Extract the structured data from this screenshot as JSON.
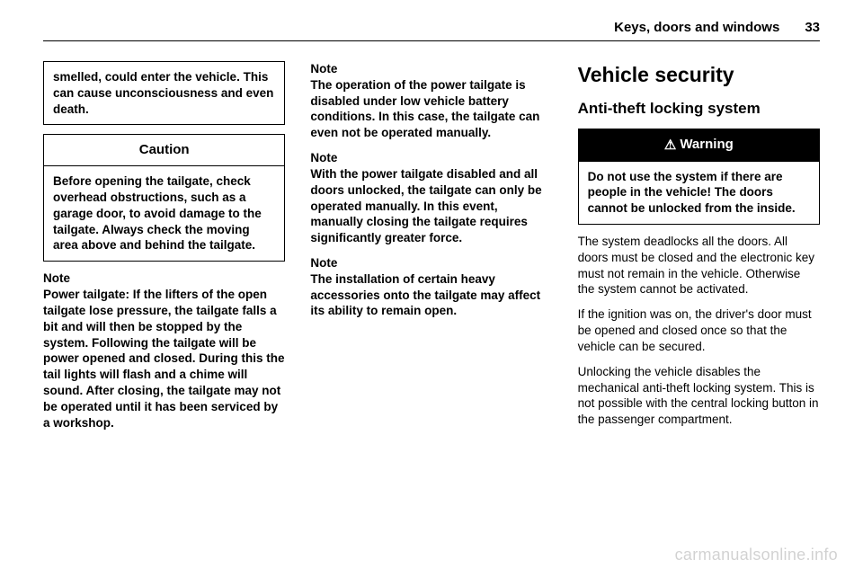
{
  "header": {
    "title": "Keys, doors and windows",
    "page": "33"
  },
  "col1": {
    "top_box": "smelled, could enter the vehicle. This can cause unconsciousness and even death.",
    "caution_label": "Caution",
    "caution_body": "Before opening the tailgate, check overhead obstructions, such as a garage door, to avoid damage to the tailgate. Always check the moving area above and behind the tailgate.",
    "note_label": "Note",
    "note_body": "Power tailgate: If the lifters of the open tailgate lose pressure, the tailgate falls a bit and will then be stopped by the system. Following the tailgate will be power opened and closed. During this the tail lights will flash and a chime will sound. After closing, the tailgate may not be operated until it has been serviced by a workshop."
  },
  "col2": {
    "note1_label": "Note",
    "note1_body": "The operation of the power tailgate is disabled under low vehicle battery conditions. In this case, the tailgate can even not be operated manually.",
    "note2_label": "Note",
    "note2_body": "With the power tailgate disabled and all doors unlocked, the tailgate can only be operated manually. In this event, manually closing the tailgate requires significantly greater force.",
    "note3_label": "Note",
    "note3_body": "The installation of certain heavy accessories onto the tailgate may affect its ability to remain open."
  },
  "col3": {
    "h1": "Vehicle security",
    "h2": "Anti-theft locking system",
    "warning_label": "Warning",
    "warning_body": "Do not use the system if there are people in the vehicle! The doors cannot be unlocked from the inside.",
    "p1": "The system deadlocks all the doors. All doors must be closed and the electronic key must not remain in the vehicle. Otherwise the system cannot be activated.",
    "p2": "If the ignition was on, the driver's door must be opened and closed once so that the vehicle can be secured.",
    "p3": "Unlocking the vehicle disables the mechanical anti-theft locking system. This is not possible with the central locking button in the passenger compartment."
  },
  "watermark": "carmanualsonline.info"
}
